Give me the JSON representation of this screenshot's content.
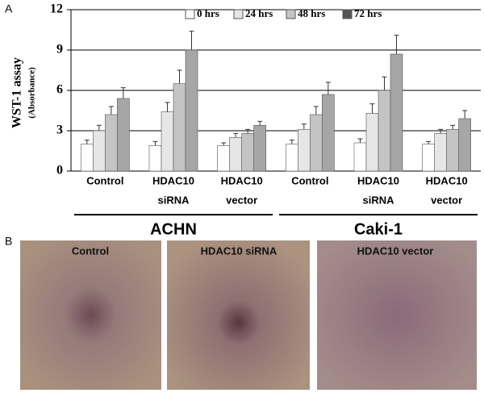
{
  "panel_labels": [
    "A",
    "B"
  ],
  "chart_data": {
    "type": "bar",
    "y_label": "WST-1 assay",
    "y_sublabel": "(Absorbance)",
    "categories": [
      [
        "Control"
      ],
      [
        "HDAC10",
        "siRNA"
      ],
      [
        "HDAC10",
        "vector"
      ],
      [
        "Control"
      ],
      [
        "HDAC10",
        "siRNA"
      ],
      [
        "HDAC10",
        "vector"
      ]
    ],
    "groups": [
      {
        "name": "ACHN",
        "span": [
          0,
          2
        ]
      },
      {
        "name": "Caki-1",
        "span": [
          3,
          5
        ]
      }
    ],
    "series": [
      {
        "name": "0 hrs",
        "color": "#ffffff",
        "values": [
          2.0,
          1.9,
          1.9,
          2.0,
          2.1,
          2.0
        ],
        "errors": [
          0.3,
          0.3,
          0.2,
          0.3,
          0.3,
          0.2
        ]
      },
      {
        "name": "24 hrs",
        "color": "#e6e6e6",
        "values": [
          3.0,
          4.4,
          2.5,
          3.1,
          4.3,
          2.8
        ],
        "errors": [
          0.4,
          0.7,
          0.3,
          0.4,
          0.7,
          0.3
        ]
      },
      {
        "name": "48 hrs",
        "color": "#c4c4c4",
        "values": [
          4.2,
          6.5,
          2.8,
          4.2,
          6.0,
          3.1
        ],
        "errors": [
          0.6,
          1.0,
          0.3,
          0.6,
          1.0,
          0.3
        ]
      },
      {
        "name": "72 hrs",
        "color": "#a6a6a6",
        "values": [
          5.4,
          9.0,
          3.4,
          5.7,
          8.7,
          3.9
        ],
        "errors": [
          0.8,
          1.4,
          0.3,
          0.9,
          1.4,
          0.6
        ]
      }
    ],
    "ylim": [
      0,
      12
    ],
    "yticks": [
      0,
      3,
      6,
      9,
      12
    ],
    "grid": true
  },
  "images": [
    {
      "label": "Control"
    },
    {
      "label": "HDAC10 siRNA"
    },
    {
      "label": "HDAC10 vector"
    }
  ]
}
